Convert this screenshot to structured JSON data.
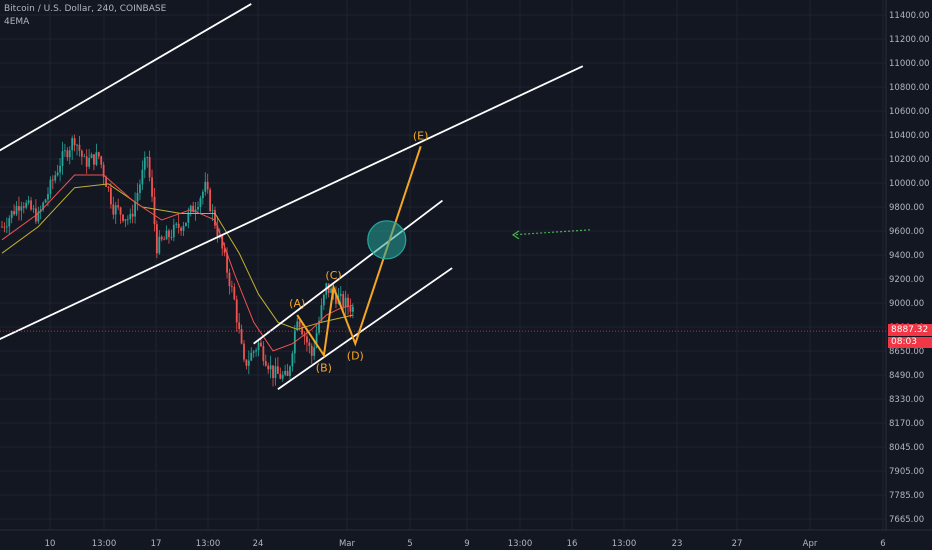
{
  "header": {
    "symbol_line": "Bitcoin / U.S. Dollar, 240, COINBASE",
    "indicator": "4EMA"
  },
  "price_badge": {
    "price": "8887.32",
    "countdown": "08:03",
    "color": "#f23645"
  },
  "colors": {
    "background": "#131722",
    "grid": "#1f2330",
    "axis_text": "#b2b5be",
    "up_candle": "#26a69a",
    "down_candle": "#ef5350",
    "trend_line": "#ffffff",
    "wave_line": "#f5a623",
    "target_circle": "#26a69a",
    "arrow": "#4caf50",
    "ema_fast": "#ef5350",
    "ema_slow": "#c0b030"
  },
  "chart_data": {
    "type": "candlestick",
    "y_scale": "log",
    "y_ticks": [
      "11400.00",
      "11200.00",
      "11000.00",
      "10800.00",
      "10600.00",
      "10400.00",
      "10200.00",
      "10000.00",
      "9800.00",
      "9600.00",
      "9400.00",
      "9200.00",
      "9000.00",
      "8800.00",
      "8650.00",
      "8490.00",
      "8330.00",
      "8170.00",
      "8045.00",
      "7905.00",
      "7785.00",
      "7665.00"
    ],
    "x_ticks": [
      "10",
      "13:00",
      "17",
      "13:00",
      "24",
      "Mar",
      "5",
      "9",
      "13:00",
      "16",
      "13:00",
      "23",
      "27",
      "Apr",
      "6"
    ],
    "anchors": [
      {
        "t": 0,
        "v": 9650
      },
      {
        "t": 8,
        "v": 9850
      },
      {
        "t": 15,
        "v": 9720
      },
      {
        "t": 24,
        "v": 10150
      },
      {
        "t": 30,
        "v": 10350
      },
      {
        "t": 34,
        "v": 10150
      },
      {
        "t": 40,
        "v": 10200
      },
      {
        "t": 46,
        "v": 9800
      },
      {
        "t": 53,
        "v": 9700
      },
      {
        "t": 60,
        "v": 10200
      },
      {
        "t": 64,
        "v": 9500
      },
      {
        "t": 70,
        "v": 9600
      },
      {
        "t": 76,
        "v": 9700
      },
      {
        "t": 84,
        "v": 9950
      },
      {
        "t": 90,
        "v": 9550
      },
      {
        "t": 96,
        "v": 9100
      },
      {
        "t": 100,
        "v": 8650
      },
      {
        "t": 106,
        "v": 8800
      },
      {
        "t": 112,
        "v": 8600
      },
      {
        "t": 118,
        "v": 8560
      },
      {
        "t": 122,
        "v": 9000
      },
      {
        "t": 128,
        "v": 8720
      },
      {
        "t": 134,
        "v": 9200
      },
      {
        "t": 140,
        "v": 9100
      },
      {
        "t": 145,
        "v": 9050
      }
    ],
    "ema_fast": [
      [
        0,
        9550
      ],
      [
        15,
        9750
      ],
      [
        30,
        10050
      ],
      [
        42,
        10050
      ],
      [
        54,
        9850
      ],
      [
        66,
        9700
      ],
      [
        78,
        9780
      ],
      [
        88,
        9700
      ],
      [
        96,
        9300
      ],
      [
        104,
        8950
      ],
      [
        112,
        8750
      ],
      [
        120,
        8800
      ],
      [
        128,
        8900
      ],
      [
        134,
        9000
      ],
      [
        140,
        9050
      ],
      [
        145,
        9070
      ]
    ],
    "ema_slow": [
      [
        0,
        9450
      ],
      [
        15,
        9650
      ],
      [
        30,
        9950
      ],
      [
        44,
        9980
      ],
      [
        58,
        9800
      ],
      [
        74,
        9750
      ],
      [
        88,
        9750
      ],
      [
        98,
        9450
      ],
      [
        106,
        9150
      ],
      [
        114,
        8950
      ],
      [
        122,
        8900
      ],
      [
        132,
        8950
      ],
      [
        145,
        9000
      ]
    ],
    "channels": [
      {
        "name": "outer-channel-upper",
        "from": [
          -5,
          10200
        ],
        "to": [
          103,
          11500
        ]
      },
      {
        "name": "outer-channel-lower",
        "from": [
          -5,
          8800
        ],
        "to": [
          240,
          10950
        ]
      },
      {
        "name": "inner-channel-upper",
        "from": [
          104,
          8800
        ],
        "to": [
          182,
          9850
        ]
      },
      {
        "name": "inner-channel-lower",
        "from": [
          114,
          8490
        ],
        "to": [
          186,
          9340
        ]
      }
    ],
    "waves": [
      {
        "label": "(A)",
        "t": 122,
        "v": 9000
      },
      {
        "label": "(B)",
        "t": 133,
        "v": 8720
      },
      {
        "label": "(C)",
        "t": 137,
        "v": 9200
      },
      {
        "label": "(D)",
        "t": 146,
        "v": 8800
      },
      {
        "label": "(E)",
        "t": 173,
        "v": 10280
      }
    ],
    "target_zone": {
      "t": 159,
      "v": 9550
    },
    "last_price": 8887.32
  }
}
